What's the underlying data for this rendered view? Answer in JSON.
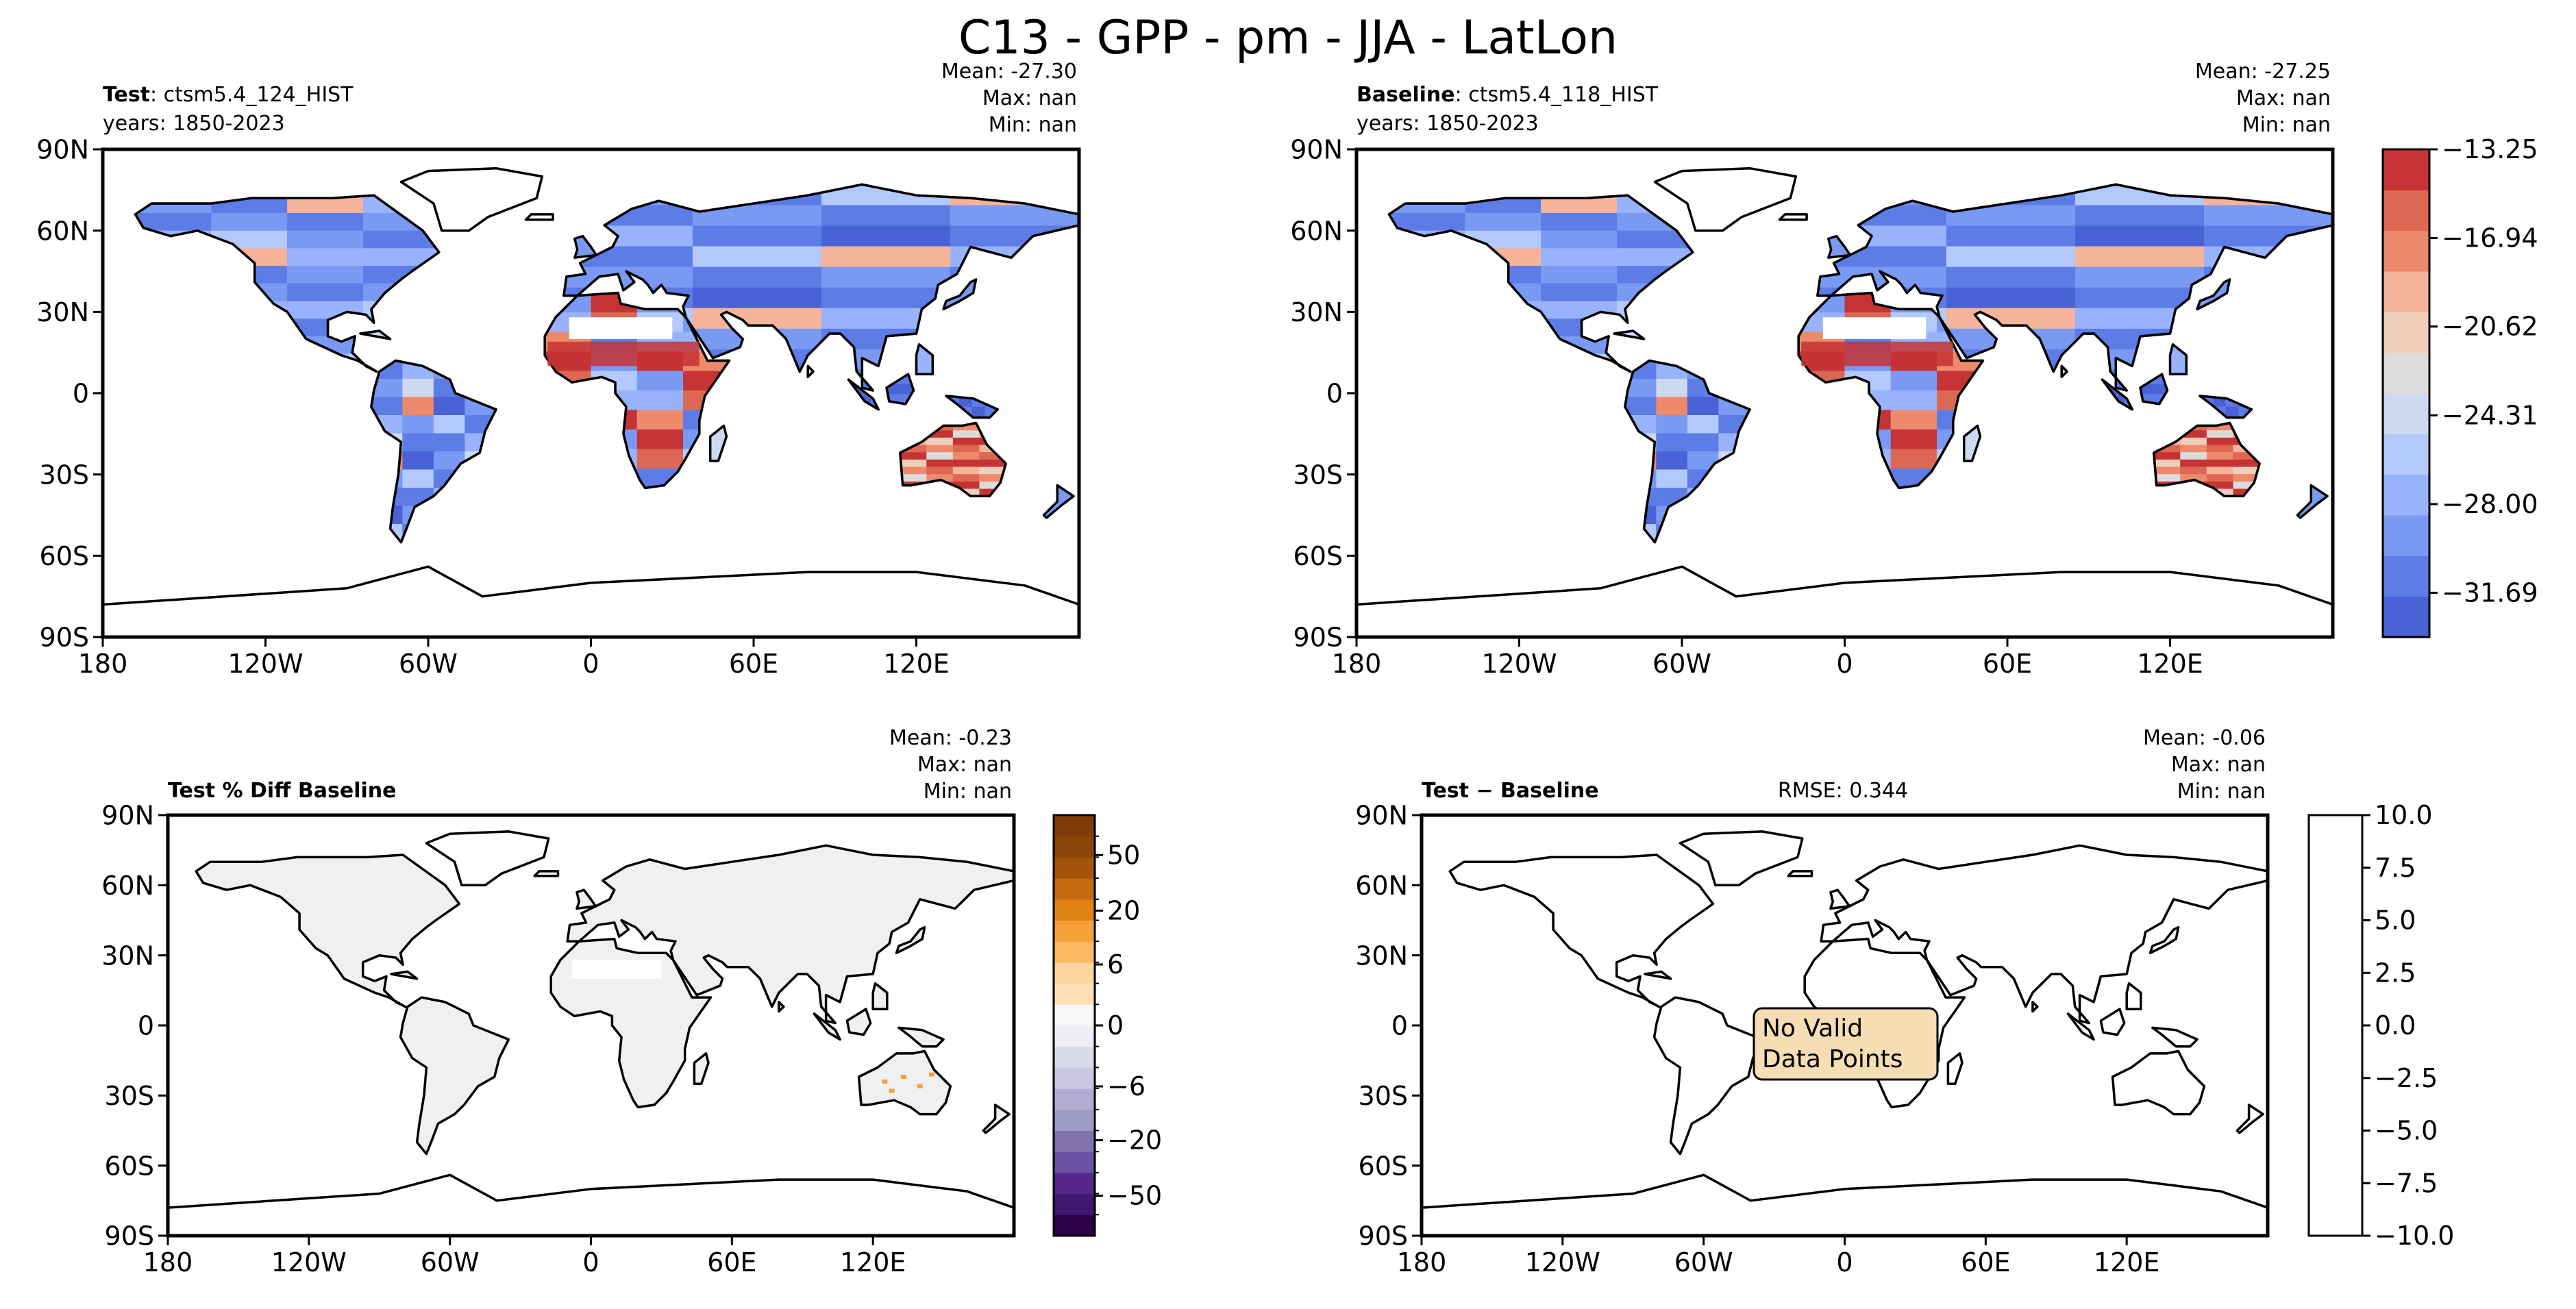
{
  "figure": {
    "title": "C13 - GPP - pm - JJA - LatLon"
  },
  "axes": {
    "lat_ticks": [
      "90N",
      "60N",
      "30N",
      "0",
      "30S",
      "60S",
      "90S"
    ],
    "lon_ticks": [
      "180",
      "120W",
      "60W",
      "0",
      "60E",
      "120E"
    ]
  },
  "colors": {
    "ocean": "#ffffff",
    "coast": "#000000",
    "no_data_box_fill": "#f5deb3",
    "diff_land": "#eef0f2"
  },
  "chart_data": [
    {
      "type": "heatmap",
      "name": "test",
      "label_bold": "Test",
      "label_rest": ": ctsm5.4_124_HIST",
      "years": "years: 1850-2023",
      "stats": {
        "mean": "Mean: -27.30",
        "max": "Max:   nan",
        "min": "Min:   nan"
      },
      "colormap": "coolwarm",
      "xlim": [
        -180,
        180
      ],
      "ylim": [
        -90,
        90
      ]
    },
    {
      "type": "heatmap",
      "name": "baseline",
      "label_bold": "Baseline",
      "label_rest": ": ctsm5.4_118_HIST",
      "years": "years: 1850-2023",
      "stats": {
        "mean": "Mean: -27.25",
        "max": "Max:   nan",
        "min": "Min:   nan"
      },
      "colorbar": {
        "ticks": [
          "−13.25",
          "−16.94",
          "−20.62",
          "−24.31",
          "−28.00",
          "−31.69"
        ],
        "levels": [
          -33.53,
          -31.69,
          -29.84,
          -28.0,
          -26.16,
          -24.31,
          -22.47,
          -20.62,
          -18.78,
          -16.94,
          -15.09,
          -13.25
        ],
        "colors": [
          "#4962d6",
          "#5d7ce6",
          "#7a99f2",
          "#98b3fb",
          "#b4c9fb",
          "#cdd9ef",
          "#dcdcdc",
          "#f1cdbb",
          "#f5b49a",
          "#ee8a6c",
          "#dd6753",
          "#c53334"
        ]
      },
      "xlim": [
        -180,
        180
      ],
      "ylim": [
        -90,
        90
      ]
    },
    {
      "type": "heatmap",
      "name": "pct_diff",
      "label_bold": "Test % Diff Baseline",
      "stats": {
        "mean": "Mean: -0.23",
        "max": "Max:   nan",
        "min": "Min:   nan"
      },
      "colorbar": {
        "ticks": [
          "50",
          "20",
          "6",
          "0",
          "−6",
          "−20",
          "−50"
        ],
        "tick_values": [
          50,
          20,
          6,
          0,
          -6,
          -20,
          -50
        ],
        "colors": [
          "#2d004b",
          "#3f1770",
          "#542788",
          "#6a51a3",
          "#8073ac",
          "#9e9ac8",
          "#b2abd2",
          "#cbc9e2",
          "#d8daeb",
          "#efedf5",
          "#f7f7f7",
          "#fee0b6",
          "#fdd49e",
          "#fdb863",
          "#f6a03a",
          "#e08214",
          "#c46a0f",
          "#a55309",
          "#8a4507",
          "#7f3b08"
        ]
      },
      "xlim": [
        -180,
        180
      ],
      "ylim": [
        -90,
        90
      ]
    },
    {
      "type": "heatmap",
      "name": "difference",
      "label_bold": "Test − Baseline",
      "rmse": "RMSE: 0.344",
      "stats": {
        "mean": "Mean: -0.06",
        "max": "Max:   nan",
        "min": "Min:   nan"
      },
      "annotation": [
        "No Valid",
        "Data Points"
      ],
      "colorbar": {
        "ticks": [
          "10.0",
          "7.5",
          "5.0",
          "2.5",
          "0.0",
          "−2.5",
          "−5.0",
          "−7.5",
          "−10.0"
        ],
        "range": [
          -10,
          10
        ]
      },
      "xlim": [
        -180,
        180
      ],
      "ylim": [
        -90,
        90
      ]
    }
  ]
}
